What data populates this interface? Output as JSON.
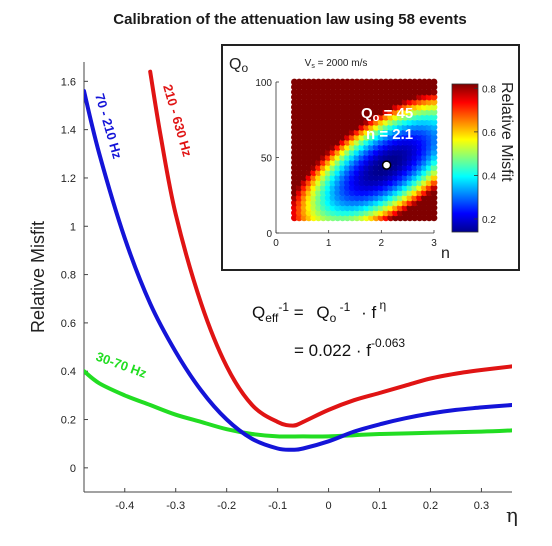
{
  "chart_data": [
    {
      "type": "line",
      "title": "Calibration of the attenuation law using 58 events",
      "xlabel": "η",
      "ylabel": "Relative Misfit",
      "xlim": [
        -0.48,
        0.36
      ],
      "ylim": [
        -0.1,
        1.68
      ],
      "xticks": [
        "-0.4",
        "-0.3",
        "-0.2",
        "-0.1",
        "0",
        "0.1",
        "0.2",
        "0.3"
      ],
      "yticks": [
        "0",
        "0.2",
        "0.4",
        "0.6",
        "0.8",
        "1",
        "1.2",
        "1.4",
        "1.6"
      ],
      "grid": false,
      "series": [
        {
          "name": "30-70 Hz",
          "color": "#22dd22",
          "x": [
            -0.48,
            -0.45,
            -0.4,
            -0.35,
            -0.3,
            -0.25,
            -0.2,
            -0.15,
            -0.1,
            -0.05,
            0,
            0.05,
            0.1,
            0.2,
            0.3,
            0.36
          ],
          "y": [
            0.4,
            0.35,
            0.3,
            0.26,
            0.22,
            0.19,
            0.16,
            0.14,
            0.13,
            0.13,
            0.13,
            0.135,
            0.14,
            0.145,
            0.15,
            0.155
          ]
        },
        {
          "name": "70 - 210 Hz",
          "color": "#1414d8",
          "x": [
            -0.48,
            -0.45,
            -0.4,
            -0.35,
            -0.3,
            -0.25,
            -0.2,
            -0.15,
            -0.1,
            -0.07,
            -0.05,
            0,
            0.05,
            0.1,
            0.15,
            0.2,
            0.25,
            0.3,
            0.36
          ],
          "y": [
            1.56,
            1.3,
            0.95,
            0.68,
            0.48,
            0.32,
            0.2,
            0.12,
            0.08,
            0.075,
            0.08,
            0.11,
            0.15,
            0.18,
            0.205,
            0.225,
            0.24,
            0.25,
            0.26
          ]
        },
        {
          "name": "210 - 630 Hz",
          "color": "#e01414",
          "x": [
            -0.35,
            -0.33,
            -0.3,
            -0.25,
            -0.2,
            -0.15,
            -0.1,
            -0.07,
            -0.05,
            0,
            0.05,
            0.1,
            0.15,
            0.2,
            0.25,
            0.3,
            0.36
          ],
          "y": [
            1.64,
            1.38,
            1.05,
            0.68,
            0.42,
            0.26,
            0.19,
            0.175,
            0.19,
            0.24,
            0.28,
            0.31,
            0.34,
            0.37,
            0.39,
            0.405,
            0.42
          ]
        }
      ],
      "annotations": {
        "eq_line1_a": "Q",
        "eq_line1_a_sub": "eff",
        "eq_line1_a_sup": "-1",
        "eq_line1_eq": " = ",
        "eq_line1_b": "Q",
        "eq_line1_b_sub": "o",
        "eq_line1_b_sup": " -1",
        "eq_line1_c": " · f",
        "eq_line1_c_sup": " η",
        "eq_line2": "= 0.022 · f",
        "eq_line2_sup": "-0.063"
      }
    },
    {
      "type": "heatmap",
      "title": "V",
      "title_sub": "s",
      "title_rest": " = 2000 m/s",
      "xlabel": "n",
      "ylabel": "Q",
      "ylabel_sub": "o",
      "xlim": [
        0,
        3
      ],
      "ylim": [
        0,
        100
      ],
      "xticks": [
        "0",
        "1",
        "2",
        "3"
      ],
      "yticks": [
        "0",
        "50",
        "100"
      ],
      "colorbar_label": "Relative Misfit",
      "colorbar_ticks": [
        "0.2",
        "0.4",
        "0.6",
        "0.8"
      ],
      "colorbar_range": [
        0.14,
        0.82
      ],
      "colormap": "jet",
      "best_fit": {
        "Qo": 45,
        "n": 2.1,
        "label_q": "Q",
        "label_q_sub": "o",
        "label_q_val": " = 45",
        "label_n": "n = 2.1"
      }
    }
  ]
}
